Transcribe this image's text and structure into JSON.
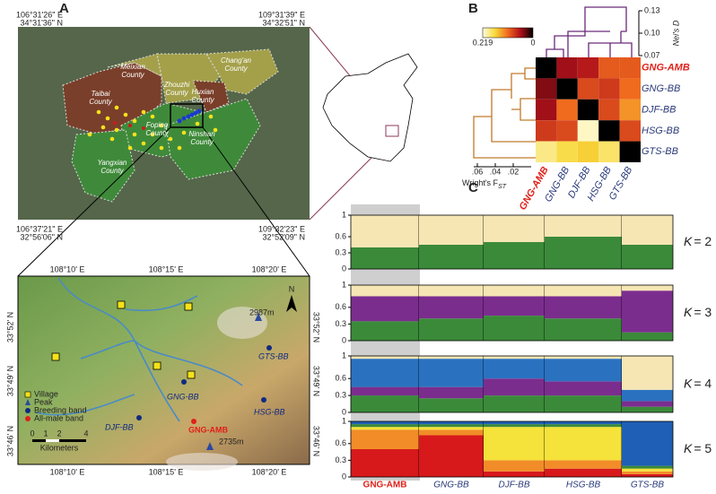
{
  "panel_a": {
    "label": "A",
    "corners": {
      "top_left": [
        "106°31'26\" E",
        "34°31'36\" N"
      ],
      "top_right": [
        "109°31'39\" E",
        "34°32'51\" N"
      ],
      "bottom_left": [
        "106°37'21\" E",
        "32°56'06\" N"
      ],
      "bottom_right": [
        "109°32'23\" E",
        "32°52'09\" N"
      ]
    },
    "counties": [
      [
        "Meixian",
        "County"
      ],
      [
        "Zhouzhi",
        "County"
      ],
      [
        "Chang'an",
        "County"
      ],
      [
        "Taibai",
        "County"
      ],
      [
        "Huxian",
        "County"
      ],
      [
        "Foping",
        "County"
      ],
      [
        "Yangxian",
        "County"
      ],
      [
        "Ninshan",
        "County"
      ]
    ],
    "inset": {
      "lon_ticks": [
        "108°10' E",
        "108°15' E",
        "108°20' E"
      ],
      "lat_ticks": [
        "33°52' N",
        "33°49' N",
        "33°46' N"
      ],
      "north": "N",
      "peaks": [
        "2987m",
        "2735m"
      ],
      "sites": [
        "GTS-BB",
        "GNG-BB",
        "HSG-BB",
        "DJF-BB",
        "GNG-AMB"
      ],
      "legend": [
        "Village",
        "Peak",
        "Breeding band",
        "All-male band"
      ],
      "scale": [
        "0",
        "1",
        "2",
        "4",
        "Kilometers"
      ]
    }
  },
  "panel_b": {
    "label": "B",
    "colorbar_ticks": [
      0.219,
      0
    ],
    "nei_title": "Nei's D",
    "nei_ticks": [
      {
        "value": 0.13,
        "label": "0.13"
      },
      {
        "value": 0.1,
        "label": "0.10"
      },
      {
        "value": 0.07,
        "label": "0.07"
      }
    ],
    "fst_title": "Wright's F",
    "fst_sub": "ST",
    "fst_ticks": [
      {
        "value": 0.06,
        "label": ".06"
      },
      {
        "value": 0.04,
        "label": ".04"
      },
      {
        "value": 0.02,
        "label": ".02"
      }
    ],
    "populations": [
      "GNG-AMB",
      "GNG-BB",
      "DJF-BB",
      "HSG-BB",
      "GTS-BB"
    ],
    "matrix": [
      [
        0,
        0.05,
        0.06,
        0.1,
        0.1
      ],
      [
        0.04,
        0,
        0.09,
        0.08,
        0.11
      ],
      [
        0.05,
        0.11,
        0,
        0.09,
        0.13
      ],
      [
        0.08,
        0.09,
        0.21,
        0,
        0.09
      ],
      [
        0.19,
        0.17,
        0.16,
        0.18,
        0
      ]
    ]
  },
  "panel_c": {
    "label": "C",
    "k_symbol": "K",
    "yticks": [
      0,
      0.3,
      0.6,
      1
    ],
    "ylim": [
      0,
      1
    ],
    "populations": [
      "GNG-AMB",
      "GNG-BB",
      "DJF-BB",
      "HSG-BB",
      "GTS-BB"
    ],
    "plots": [
      {
        "k_text": "= 2",
        "colors": [
          "#3b8a3a",
          "#f6e6b4"
        ],
        "proportions": [
          [
            0.4,
            0.6
          ],
          [
            0.45,
            0.55
          ],
          [
            0.5,
            0.5
          ],
          [
            0.6,
            0.4
          ],
          [
            0.45,
            0.55
          ]
        ]
      },
      {
        "k_text": "= 3",
        "colors": [
          "#3b8a3a",
          "#7b2d8e",
          "#f6e6b4"
        ],
        "proportions": [
          [
            0.35,
            0.45,
            0.2
          ],
          [
            0.4,
            0.4,
            0.2
          ],
          [
            0.45,
            0.35,
            0.2
          ],
          [
            0.4,
            0.4,
            0.2
          ],
          [
            0.15,
            0.75,
            0.1
          ]
        ]
      },
      {
        "k_text": "= 4",
        "colors": [
          "#3b8a3a",
          "#7b2d8e",
          "#2a72c0",
          "#f6e6b4"
        ],
        "proportions": [
          [
            0.3,
            0.15,
            0.5,
            0.05
          ],
          [
            0.25,
            0.2,
            0.5,
            0.05
          ],
          [
            0.3,
            0.3,
            0.35,
            0.05
          ],
          [
            0.3,
            0.25,
            0.4,
            0.05
          ],
          [
            0.1,
            0.1,
            0.2,
            0.6
          ]
        ]
      },
      {
        "k_text": "= 5",
        "colors": [
          "#d7191c",
          "#f28c28",
          "#f5e23a",
          "#3b8a3a",
          "#1f5fb5"
        ],
        "proportions": [
          [
            0.5,
            0.35,
            0.05,
            0.05,
            0.05
          ],
          [
            0.75,
            0.1,
            0.05,
            0.05,
            0.05
          ],
          [
            0.1,
            0.2,
            0.6,
            0.05,
            0.05
          ],
          [
            0.15,
            0.15,
            0.6,
            0.05,
            0.05
          ],
          [
            0.05,
            0.05,
            0.05,
            0.05,
            0.8
          ]
        ]
      }
    ]
  }
}
